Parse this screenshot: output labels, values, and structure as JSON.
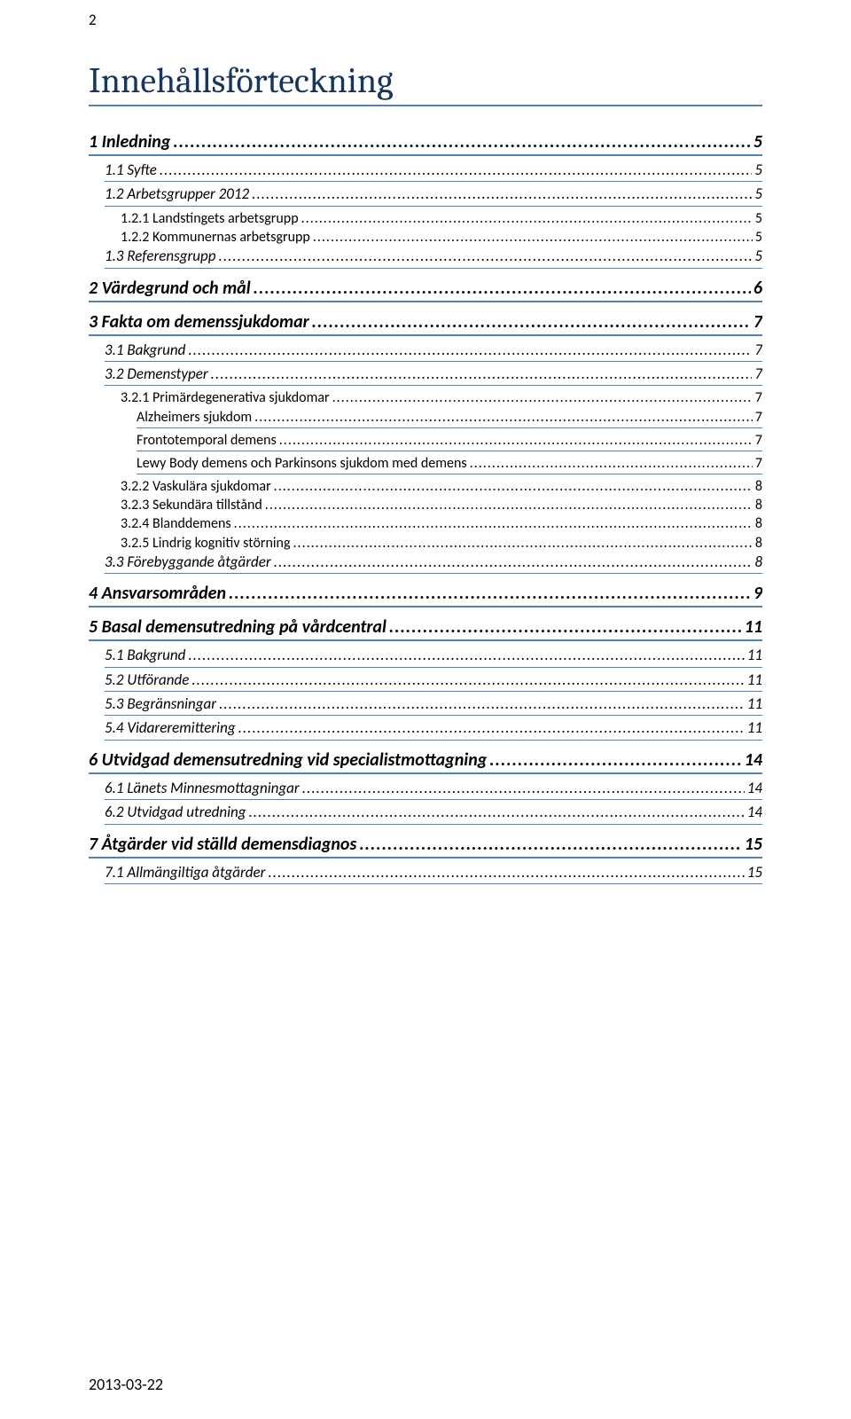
{
  "page_number_top": "2",
  "heading": "Innehållsförteckning",
  "footer_date": "2013-03-22",
  "colors": {
    "heading_color": "#17365d",
    "rule_color": "#4f81bd",
    "text_color": "#000000",
    "background": "#ffffff"
  },
  "typography": {
    "heading_font": "Cambria",
    "body_font": "Calibri",
    "heading_fontsize_pt": 28,
    "l1_fontsize_pt": 14,
    "l2_fontsize_pt": 12,
    "l3_fontsize_pt": 11,
    "l4_fontsize_pt": 11
  },
  "toc": [
    {
      "level": 1,
      "underline": "double",
      "label": "1 Inledning",
      "page": "5"
    },
    {
      "level": 2,
      "underline": "single",
      "label": "1.1 Syfte",
      "page": "5"
    },
    {
      "level": 2,
      "underline": "single",
      "label": "1.2 Arbetsgrupper 2012",
      "page": "5"
    },
    {
      "level": 3,
      "underline": "none",
      "label": "1.2.1 Landstingets arbetsgrupp",
      "page": "5"
    },
    {
      "level": 3,
      "underline": "none",
      "label": "1.2.2 Kommunernas arbetsgrupp",
      "page": "5"
    },
    {
      "level": 2,
      "underline": "single",
      "label": "1.3 Referensgrupp",
      "page": "5"
    },
    {
      "level": 1,
      "underline": "double",
      "label": "2 Värdegrund och mål",
      "page": "6"
    },
    {
      "level": 1,
      "underline": "double",
      "label": "3 Fakta om demenssjukdomar",
      "page": "7"
    },
    {
      "level": 2,
      "underline": "single",
      "label": "3.1 Bakgrund",
      "page": "7"
    },
    {
      "level": 2,
      "underline": "single",
      "label": "3.2 Demenstyper",
      "page": "7"
    },
    {
      "level": 3,
      "underline": "none",
      "label": "3.2.1 Primärdegenerativa sjukdomar",
      "page": "7"
    },
    {
      "level": 4,
      "underline": "single",
      "label": "Alzheimers sjukdom",
      "page": "7"
    },
    {
      "level": 4,
      "underline": "single",
      "label": "Frontotemporal demens",
      "page": "7"
    },
    {
      "level": 4,
      "underline": "single",
      "label": "Lewy Body demens och Parkinsons sjukdom med demens",
      "page": "7"
    },
    {
      "level": 3,
      "underline": "none",
      "label": "3.2.2 Vaskulära sjukdomar",
      "page": "8"
    },
    {
      "level": 3,
      "underline": "none",
      "label": "3.2.3 Sekundära tillstånd",
      "page": "8"
    },
    {
      "level": 3,
      "underline": "none",
      "label": "3.2.4 Blanddemens",
      "page": "8"
    },
    {
      "level": 3,
      "underline": "none",
      "label": "3.2.5 Lindrig kognitiv störning",
      "page": "8"
    },
    {
      "level": 2,
      "underline": "single",
      "label": "3.3 Förebyggande åtgärder",
      "page": "8"
    },
    {
      "level": 1,
      "underline": "double",
      "label": "4 Ansvarsområden",
      "page": "9"
    },
    {
      "level": 1,
      "underline": "double",
      "label": "5 Basal demensutredning på vårdcentral",
      "page": "11"
    },
    {
      "level": 2,
      "underline": "single",
      "label": "5.1 Bakgrund",
      "page": "11"
    },
    {
      "level": 2,
      "underline": "single",
      "label": "5.2 Utförande",
      "page": "11"
    },
    {
      "level": 2,
      "underline": "single",
      "label": "5.3 Begränsningar",
      "page": "11"
    },
    {
      "level": 2,
      "underline": "single",
      "label": "5.4 Vidareremittering",
      "page": "11"
    },
    {
      "level": 1,
      "underline": "double",
      "label": "6 Utvidgad demensutredning vid specialistmottagning",
      "page": "14"
    },
    {
      "level": 2,
      "underline": "single",
      "label": "6.1 Länets Minnesmottagningar",
      "page": "14"
    },
    {
      "level": 2,
      "underline": "single",
      "label": "6.2 Utvidgad utredning",
      "page": "14"
    },
    {
      "level": 1,
      "underline": "double",
      "label": "7 Åtgärder vid ställd demensdiagnos",
      "page": "15"
    },
    {
      "level": 2,
      "underline": "single",
      "label": "7.1 Allmängiltiga åtgärder",
      "page": "15"
    }
  ]
}
